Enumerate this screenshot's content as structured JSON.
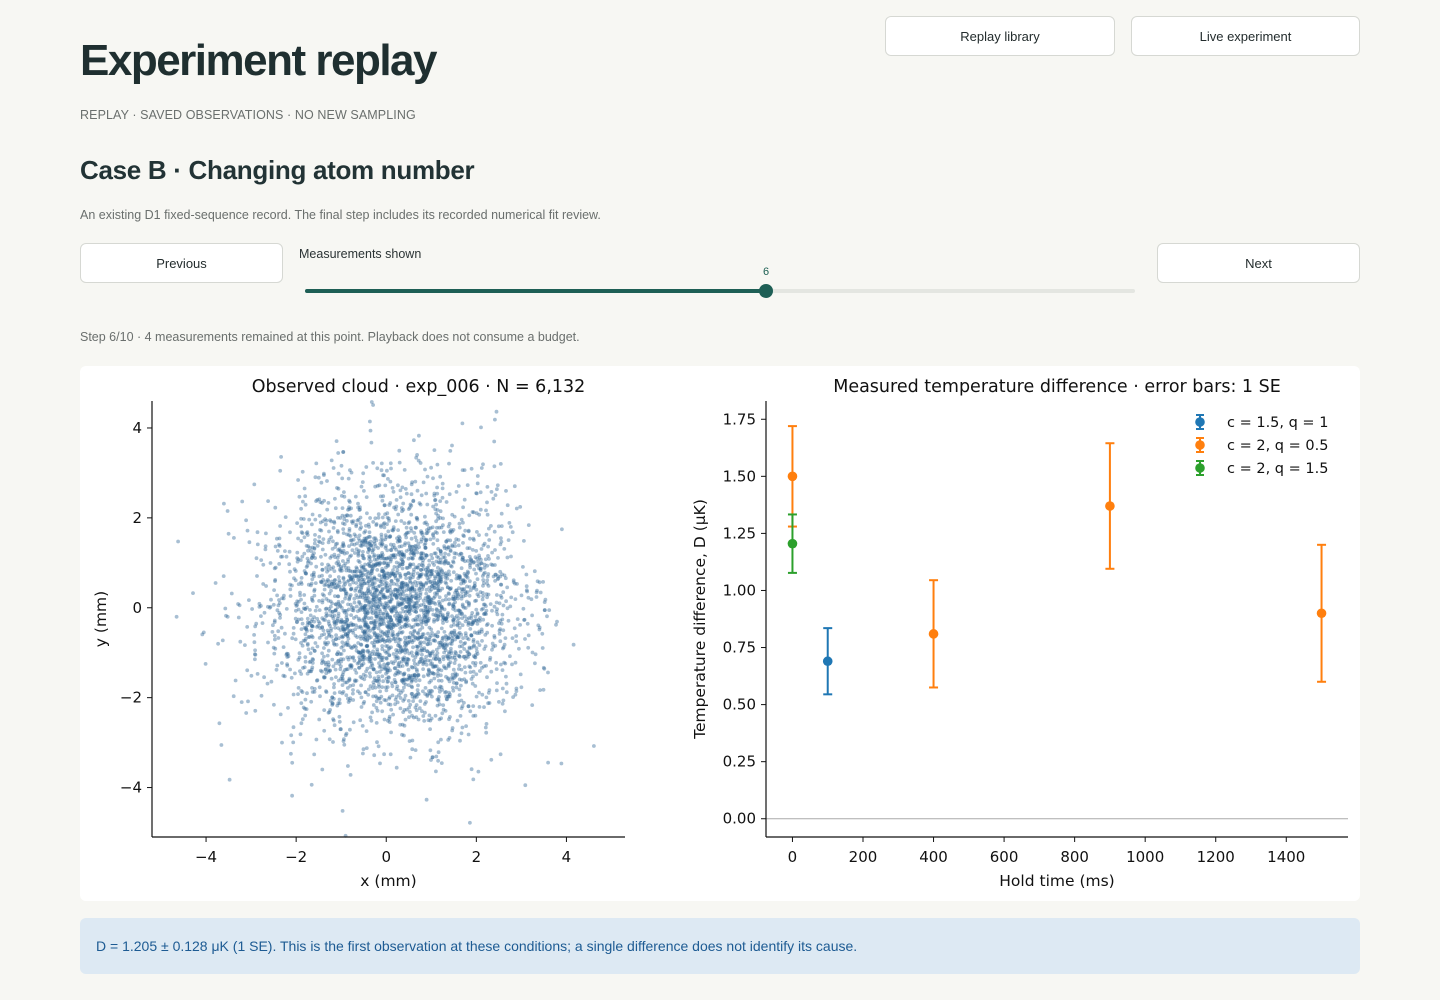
{
  "header": {
    "title": "Experiment replay",
    "kicker": "REPLAY · SAVED OBSERVATIONS · NO NEW SAMPLING",
    "buttons": {
      "library": "Replay library",
      "live": "Live experiment"
    }
  },
  "case": {
    "title": "Case B · Changing atom number",
    "description": "An existing D1 fixed-sequence record. The final step includes its recorded numerical fit review."
  },
  "navigation": {
    "previous_label": "Previous",
    "next_label": "Next",
    "slider": {
      "label": "Measurements shown",
      "value": 6,
      "min": 1,
      "max": 10
    }
  },
  "step_status": "Step 6/10 · 4 measurements remained at this point. Playback does not consume a budget.",
  "chart_data": [
    {
      "type": "scatter",
      "title": "Observed cloud · exp_006 · N = 6,132",
      "xlabel": "x (mm)",
      "ylabel": "y (mm)",
      "xlim": [
        -5.2,
        5.3
      ],
      "ylim": [
        -5.1,
        4.6
      ],
      "xticks": [
        -4,
        -2,
        0,
        2,
        4
      ],
      "yticks": [
        -4,
        -2,
        0,
        2,
        4
      ],
      "xtick_labels": [
        "−4",
        "−2",
        "0",
        "2",
        "4"
      ],
      "ytick_labels": [
        "−4",
        "−2",
        "0",
        "2",
        "4"
      ],
      "n_points": 6132,
      "distribution": {
        "center": [
          0.2,
          0.0
        ],
        "sigma_x": 1.35,
        "sigma_y": 1.35
      },
      "point_color": "#2f6697",
      "grid": false
    },
    {
      "type": "scatter",
      "subtype": "errorbar",
      "title": "Measured temperature difference · error bars: 1 SE",
      "xlabel": "Hold time (ms)",
      "ylabel": "Temperature difference, D (μK)",
      "xlim": [
        -75,
        1575
      ],
      "ylim": [
        -0.08,
        1.83
      ],
      "xticks": [
        0,
        200,
        400,
        600,
        800,
        1000,
        1200,
        1400
      ],
      "yticks": [
        0,
        0.25,
        0.5,
        0.75,
        1.0,
        1.25,
        1.5,
        1.75
      ],
      "xtick_labels": [
        "0",
        "200",
        "400",
        "600",
        "800",
        "1000",
        "1200",
        "1400"
      ],
      "ytick_labels": [
        "0.00",
        "0.25",
        "0.50",
        "0.75",
        "1.00",
        "1.25",
        "1.50",
        "1.75"
      ],
      "reference_line_y": 0,
      "legend_position": "top-right",
      "grid": false,
      "series": [
        {
          "name": "c = 1.5, q = 1",
          "color": "#1f77b4",
          "points": [
            {
              "x": 100,
              "y": 0.69,
              "err": 0.145
            }
          ]
        },
        {
          "name": "c = 2, q = 0.5",
          "color": "#ff7f0e",
          "points": [
            {
              "x": 0,
              "y": 1.5,
              "err": 0.22
            },
            {
              "x": 400,
              "y": 0.81,
              "err": 0.235
            },
            {
              "x": 900,
              "y": 1.37,
              "err": 0.275
            },
            {
              "x": 1500,
              "y": 0.9,
              "err": 0.3
            }
          ]
        },
        {
          "name": "c = 2, q = 1.5",
          "color": "#2ca02c",
          "points": [
            {
              "x": 0,
              "y": 1.205,
              "err": 0.128
            }
          ]
        }
      ]
    }
  ],
  "result_note": "D = 1.205 ± 0.128 μK (1 SE). This is the first observation at these conditions; a single difference does not identify its cause."
}
